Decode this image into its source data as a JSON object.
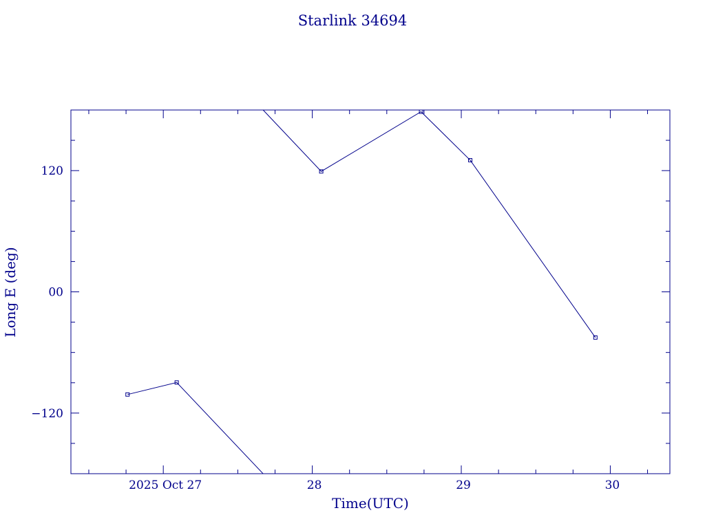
{
  "chart_data": {
    "type": "line",
    "title": "Starlink 34694",
    "xlabel": "Time(UTC)",
    "ylabel": "Long E (deg)",
    "x_unit": "days of 2025 Oct",
    "xlim": [
      26.38,
      30.4
    ],
    "ylim": [
      -180,
      180
    ],
    "x_ticks": [
      {
        "value": 27,
        "label": "2025 Oct 27"
      },
      {
        "value": 28,
        "label": "28"
      },
      {
        "value": 29,
        "label": "29"
      },
      {
        "value": 30,
        "label": "30"
      }
    ],
    "y_ticks": [
      {
        "value": 120,
        "label": "120"
      },
      {
        "value": 0,
        "label": "00"
      },
      {
        "value": -120,
        "label": "−120"
      }
    ],
    "segments": [
      {
        "points": [
          [
            26.76,
            -101.6
          ],
          [
            27.09,
            -89.7
          ],
          [
            27.67,
            -180
          ]
        ],
        "markers": [
          true,
          true,
          false
        ]
      },
      {
        "points": [
          [
            27.67,
            180
          ],
          [
            28.06,
            119.2
          ],
          [
            28.73,
            178.3
          ],
          [
            29.06,
            130.3
          ],
          [
            29.9,
            -45.2
          ]
        ],
        "markers": [
          false,
          true,
          true,
          true,
          true
        ]
      }
    ],
    "grid": false,
    "line_color": "#00008b"
  }
}
